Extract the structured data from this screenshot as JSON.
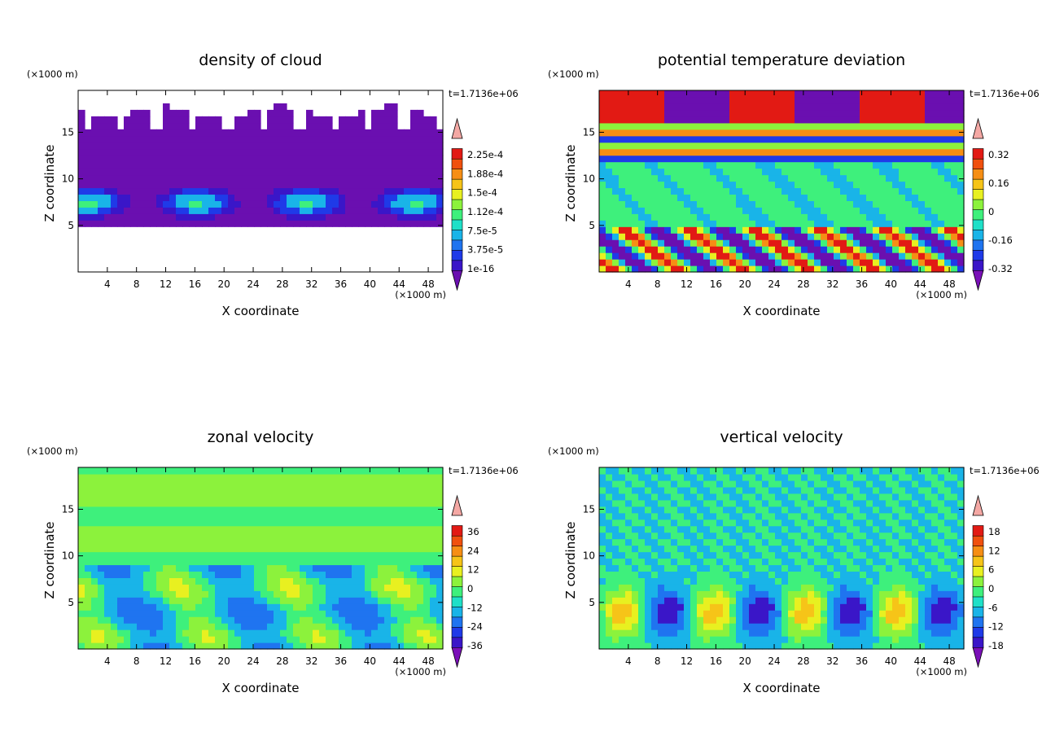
{
  "chart_data": [
    {
      "type": "heatmap",
      "title": "density of cloud",
      "xlabel": "X coordinate",
      "ylabel": "Z coordinate",
      "x_unit": "(×1000 m)",
      "y_unit": "(×1000 m)",
      "time_label": "t=1.7136e+06",
      "xlim": [
        0,
        50
      ],
      "ylim": [
        0,
        19.5
      ],
      "xticks": [
        "4",
        "8",
        "12",
        "16",
        "20",
        "24",
        "28",
        "32",
        "36",
        "40",
        "44",
        "48"
      ],
      "yticks": [
        "5",
        "10",
        "15"
      ],
      "colorbar": {
        "labels": [
          "2.25e-4",
          "1.88e-4",
          "1.5e-4",
          "1.12e-4",
          "7.5e-5",
          "3.75e-5",
          "1e-16"
        ],
        "colors": [
          "#6a0fb0",
          "#3a16c8",
          "#1f3ae8",
          "#1f74f0",
          "#19b4e8",
          "#1fe0c8",
          "#3ef07c",
          "#8cf23c",
          "#e8f020",
          "#f6c418",
          "#f68e14",
          "#f0500e",
          "#e21a14",
          "#f4a8a4"
        ]
      }
    },
    {
      "type": "heatmap",
      "title": "potential temperature deviation",
      "xlabel": "X coordinate",
      "ylabel": "Z coordinate",
      "x_unit": "(×1000 m)",
      "y_unit": "(×1000 m)",
      "time_label": "t=1.7136e+06",
      "xlim": [
        0,
        50
      ],
      "ylim": [
        0,
        19.5
      ],
      "xticks": [
        "4",
        "8",
        "12",
        "16",
        "20",
        "24",
        "28",
        "32",
        "36",
        "40",
        "44",
        "48"
      ],
      "yticks": [
        "5",
        "10",
        "15"
      ],
      "colorbar": {
        "labels": [
          "0.32",
          "0.16",
          "0",
          "-0.16",
          "-0.32"
        ],
        "colors": [
          "#7a10b8",
          "#3a16c8",
          "#1f3ae8",
          "#1f74f0",
          "#19b4e8",
          "#1fe0c8",
          "#3ef07c",
          "#8cf23c",
          "#e8f020",
          "#f6c418",
          "#f68e14",
          "#f0500e",
          "#e21a14",
          "#f4a8a4"
        ]
      }
    },
    {
      "type": "heatmap",
      "title": "zonal velocity",
      "xlabel": "X coordinate",
      "ylabel": "Z coordinate",
      "x_unit": "(×1000 m)",
      "y_unit": "(×1000 m)",
      "time_label": "t=1.7136e+06",
      "xlim": [
        0,
        50
      ],
      "ylim": [
        0,
        19.5
      ],
      "xticks": [
        "4",
        "8",
        "12",
        "16",
        "20",
        "24",
        "28",
        "32",
        "36",
        "40",
        "44",
        "48"
      ],
      "yticks": [
        "5",
        "10",
        "15"
      ],
      "colorbar": {
        "labels": [
          "36",
          "24",
          "12",
          "0",
          "-12",
          "-24",
          "-36"
        ],
        "colors": [
          "#7a10b8",
          "#3a16c8",
          "#1f3ae8",
          "#1f74f0",
          "#19b4e8",
          "#1fe0c8",
          "#3ef07c",
          "#8cf23c",
          "#e8f020",
          "#f6c418",
          "#f68e14",
          "#f0500e",
          "#e21a14",
          "#f4a8a4"
        ]
      }
    },
    {
      "type": "heatmap",
      "title": "vertical velocity",
      "xlabel": "X coordinate",
      "ylabel": "Z coordinate",
      "x_unit": "(×1000 m)",
      "y_unit": "(×1000 m)",
      "time_label": "t=1.7136e+06",
      "xlim": [
        0,
        50
      ],
      "ylim": [
        0,
        19.5
      ],
      "xticks": [
        "4",
        "8",
        "12",
        "16",
        "20",
        "24",
        "28",
        "32",
        "36",
        "40",
        "44",
        "48"
      ],
      "yticks": [
        "5",
        "10",
        "15"
      ],
      "colorbar": {
        "labels": [
          "18",
          "12",
          "6",
          "0",
          "-6",
          "-12",
          "-18"
        ],
        "colors": [
          "#7a10b8",
          "#3a16c8",
          "#1f3ae8",
          "#1f74f0",
          "#19b4e8",
          "#1fe0c8",
          "#3ef07c",
          "#8cf23c",
          "#e8f020",
          "#f6c418",
          "#f68e14",
          "#f0500e",
          "#e21a14",
          "#f4a8a4"
        ]
      }
    }
  ]
}
